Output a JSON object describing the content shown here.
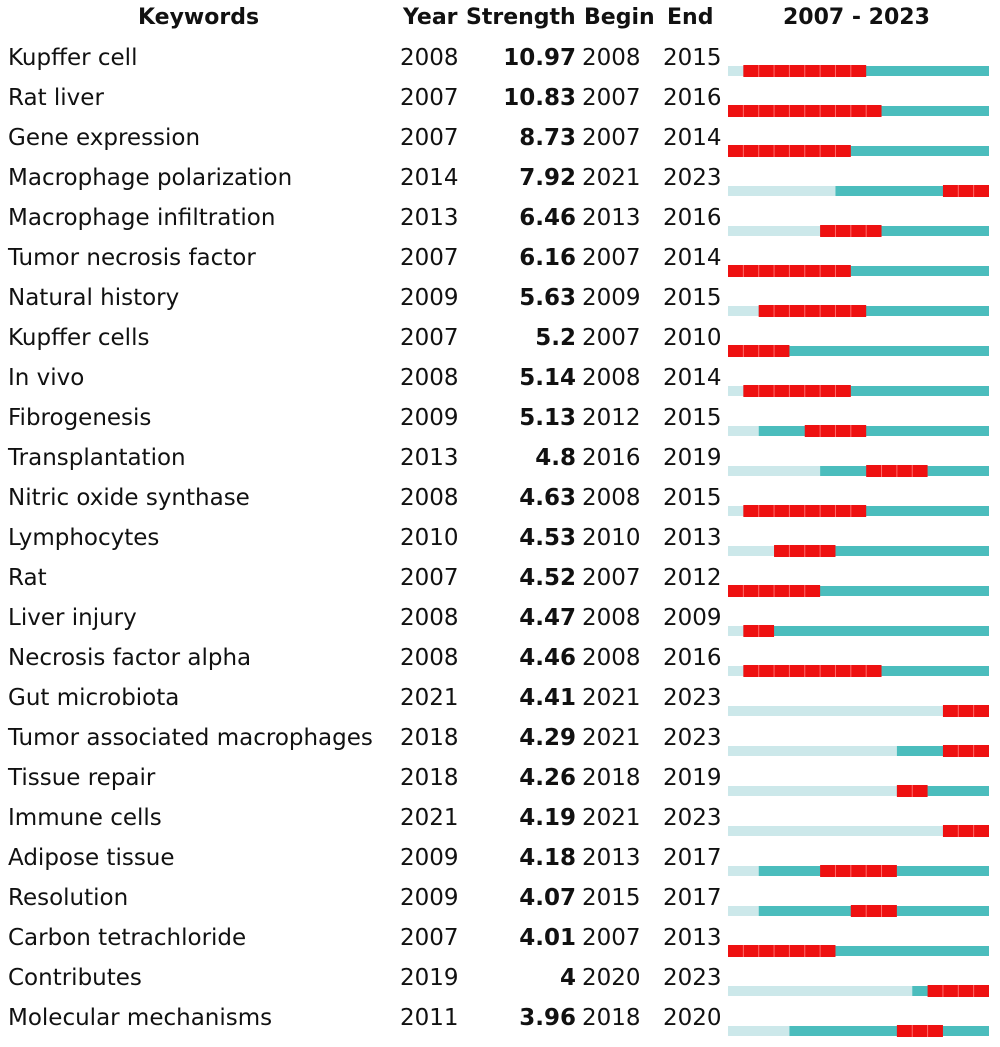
{
  "chart_data": {
    "type": "table",
    "headers": {
      "keyword": "Keywords",
      "year": "Year",
      "strength": "Strength",
      "begin": "Begin",
      "end": "End",
      "range": "2007 - 2023"
    },
    "timeline_start": 2007,
    "timeline_end": 2023,
    "colors": {
      "burst": "#ee1111",
      "active": "#4bbdbd",
      "inactive": "#cce8ea"
    },
    "rows": [
      {
        "keyword": "Kupffer cell",
        "year": "2008",
        "strength": "10.97",
        "begin": "2008",
        "end": "2015"
      },
      {
        "keyword": "Rat liver",
        "year": "2007",
        "strength": "10.83",
        "begin": "2007",
        "end": "2016"
      },
      {
        "keyword": "Gene expression",
        "year": "2007",
        "strength": "8.73",
        "begin": "2007",
        "end": "2014"
      },
      {
        "keyword": "Macrophage polarization",
        "year": "2014",
        "strength": "7.92",
        "begin": "2021",
        "end": "2023"
      },
      {
        "keyword": "Macrophage infiltration",
        "year": "2013",
        "strength": "6.46",
        "begin": "2013",
        "end": "2016"
      },
      {
        "keyword": "Tumor necrosis factor",
        "year": "2007",
        "strength": "6.16",
        "begin": "2007",
        "end": "2014"
      },
      {
        "keyword": "Natural history",
        "year": "2009",
        "strength": "5.63",
        "begin": "2009",
        "end": "2015"
      },
      {
        "keyword": "Kupffer cells",
        "year": "2007",
        "strength": "5.2",
        "begin": "2007",
        "end": "2010"
      },
      {
        "keyword": "In vivo",
        "year": "2008",
        "strength": "5.14",
        "begin": "2008",
        "end": "2014"
      },
      {
        "keyword": "Fibrogenesis",
        "year": "2009",
        "strength": "5.13",
        "begin": "2012",
        "end": "2015"
      },
      {
        "keyword": "Transplantation",
        "year": "2013",
        "strength": "4.8",
        "begin": "2016",
        "end": "2019"
      },
      {
        "keyword": "Nitric oxide synthase",
        "year": "2008",
        "strength": "4.63",
        "begin": "2008",
        "end": "2015"
      },
      {
        "keyword": "Lymphocytes",
        "year": "2010",
        "strength": "4.53",
        "begin": "2010",
        "end": "2013"
      },
      {
        "keyword": "Rat",
        "year": "2007",
        "strength": "4.52",
        "begin": "2007",
        "end": "2012"
      },
      {
        "keyword": "Liver injury",
        "year": "2008",
        "strength": "4.47",
        "begin": "2008",
        "end": "2009"
      },
      {
        "keyword": "Necrosis factor alpha",
        "year": "2008",
        "strength": "4.46",
        "begin": "2008",
        "end": "2016"
      },
      {
        "keyword": "Gut microbiota",
        "year": "2021",
        "strength": "4.41",
        "begin": "2021",
        "end": "2023"
      },
      {
        "keyword": "Tumor associated macrophages",
        "year": "2018",
        "strength": "4.29",
        "begin": "2021",
        "end": "2023"
      },
      {
        "keyword": "Tissue repair",
        "year": "2018",
        "strength": "4.26",
        "begin": "2018",
        "end": "2019"
      },
      {
        "keyword": "Immune cells",
        "year": "2021",
        "strength": "4.19",
        "begin": "2021",
        "end": "2023"
      },
      {
        "keyword": "Adipose tissue",
        "year": "2009",
        "strength": "4.18",
        "begin": "2013",
        "end": "2017"
      },
      {
        "keyword": "Resolution",
        "year": "2009",
        "strength": "4.07",
        "begin": "2015",
        "end": "2017"
      },
      {
        "keyword": "Carbon tetrachloride",
        "year": "2007",
        "strength": "4.01",
        "begin": "2007",
        "end": "2013"
      },
      {
        "keyword": "Contributes",
        "year": "2019",
        "strength": "4",
        "begin": "2020",
        "end": "2023"
      },
      {
        "keyword": "Molecular mechanisms",
        "year": "2011",
        "strength": "3.96",
        "begin": "2018",
        "end": "2020"
      }
    ]
  }
}
